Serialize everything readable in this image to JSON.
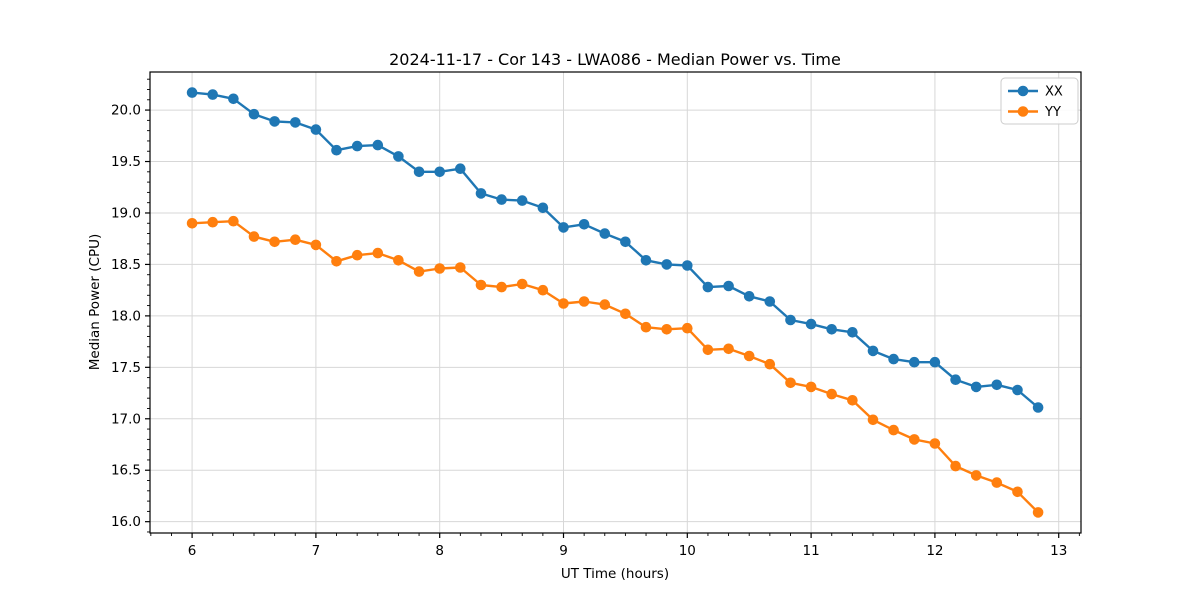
{
  "chart_data": {
    "type": "line",
    "title": "2024-11-17 - Cor 143 - LWA086 - Median Power vs. Time",
    "xlabel": "UT Time (hours)",
    "ylabel": "Median Power (CPU)",
    "x": [
      6.0,
      6.1667,
      6.3333,
      6.5,
      6.6667,
      6.8333,
      7.0,
      7.1667,
      7.3333,
      7.5,
      7.6667,
      7.8333,
      8.0,
      8.1667,
      8.3333,
      8.5,
      8.6667,
      8.8333,
      9.0,
      9.1667,
      9.3333,
      9.5,
      9.6667,
      9.8333,
      10.0,
      10.1667,
      10.3333,
      10.5,
      10.6667,
      10.8333,
      11.0,
      11.1667,
      11.3333,
      11.5,
      11.6667,
      11.8333,
      12.0,
      12.1667,
      12.3333,
      12.5,
      12.6667,
      12.8333
    ],
    "series": [
      {
        "name": "XX",
        "color": "#1f77b4",
        "values": [
          20.17,
          20.15,
          20.11,
          19.96,
          19.89,
          19.88,
          19.81,
          19.61,
          19.65,
          19.66,
          19.55,
          19.4,
          19.4,
          19.43,
          19.19,
          19.13,
          19.12,
          19.05,
          18.86,
          18.89,
          18.8,
          18.72,
          18.54,
          18.5,
          18.49,
          18.28,
          18.29,
          18.19,
          18.14,
          17.96,
          17.92,
          17.87,
          17.84,
          17.66,
          17.58,
          17.55,
          17.55,
          17.38,
          17.31,
          17.33,
          17.28,
          17.11
        ]
      },
      {
        "name": "YY",
        "color": "#ff7f0e",
        "values": [
          18.9,
          18.91,
          18.92,
          18.77,
          18.72,
          18.74,
          18.69,
          18.53,
          18.59,
          18.61,
          18.54,
          18.43,
          18.46,
          18.47,
          18.3,
          18.28,
          18.31,
          18.25,
          18.12,
          18.14,
          18.11,
          18.02,
          17.89,
          17.87,
          17.88,
          17.67,
          17.68,
          17.61,
          17.53,
          17.35,
          17.31,
          17.24,
          17.18,
          16.99,
          16.89,
          16.8,
          16.76,
          16.54,
          16.45,
          16.38,
          16.29,
          16.09
        ]
      }
    ],
    "xlim": [
      5.66,
      13.18
    ],
    "ylim": [
      15.89,
      20.37
    ],
    "xticks": [
      6,
      7,
      8,
      9,
      10,
      11,
      12,
      13
    ],
    "xtick_labels": [
      "6",
      "7",
      "8",
      "9",
      "10",
      "11",
      "12",
      "13"
    ],
    "yticks": [
      16.0,
      16.5,
      17.0,
      17.5,
      18.0,
      18.5,
      19.0,
      19.5,
      20.0
    ],
    "ytick_labels": [
      "16.0",
      "16.5",
      "17.0",
      "17.5",
      "18.0",
      "18.5",
      "19.0",
      "19.5",
      "20.0"
    ],
    "x_minor_step": 0.166667,
    "y_minor_step": 0.1,
    "grid": true,
    "grid_color": "#d7d7d7",
    "spine_color": "#000000",
    "background": "#ffffff",
    "legend": {
      "position": "upper right",
      "entries": [
        "XX",
        "YY"
      ]
    },
    "marker": "circle"
  }
}
